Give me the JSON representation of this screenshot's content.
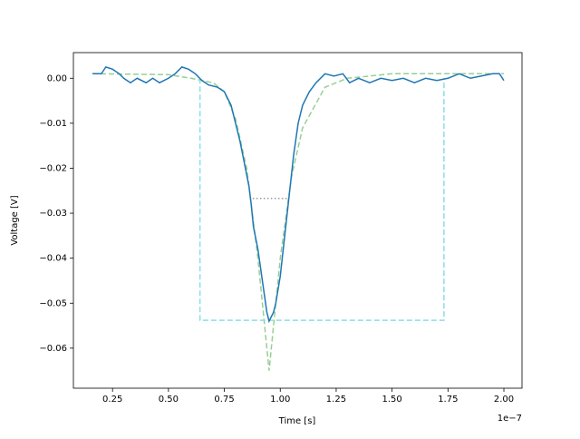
{
  "chart_data": {
    "type": "line",
    "x_label": "Time [s]",
    "y_label": "Voltage [V]",
    "x_offset_label": "1e−7",
    "xlim": [
      0.075,
      2.081
    ],
    "ylim": [
      -0.0689,
      0.0057
    ],
    "xticks": [
      0.25,
      {
        "value": 0.5,
        "label": "0.50"
      },
      0.75,
      {
        "value": 1.0,
        "label": "1.00"
      },
      1.25,
      {
        "value": 1.5,
        "label": "1.50"
      },
      1.75,
      {
        "value": 2.0,
        "label": "2.00"
      }
    ],
    "yticks": [
      {
        "value": 0.0,
        "label": "0.00"
      },
      {
        "value": -0.01,
        "label": "−0.01"
      },
      {
        "value": -0.02,
        "label": "−0.02"
      },
      {
        "value": -0.03,
        "label": "−0.03"
      },
      {
        "value": -0.04,
        "label": "−0.04"
      },
      {
        "value": -0.05,
        "label": "−0.05"
      },
      {
        "value": -0.06,
        "label": "−0.06"
      }
    ],
    "series": [
      {
        "color": "#96cf96",
        "style": "dashed",
        "x": [
          0.16,
          0.5,
          0.6,
          0.7,
          0.75,
          0.8,
          0.85,
          0.9,
          0.93,
          0.95,
          0.97,
          1.0,
          1.05,
          1.1,
          1.2,
          1.3,
          1.5,
          2.0
        ],
        "values": [
          0.001,
          0.0008,
          0.0,
          -0.001,
          -0.003,
          -0.009,
          -0.02,
          -0.04,
          -0.055,
          -0.065,
          -0.055,
          -0.04,
          -0.022,
          -0.011,
          -0.002,
          0.0,
          0.001,
          0.001
        ]
      },
      {
        "color": "#8bdee7",
        "style": "dashed",
        "x": [
          0.641,
          0.641,
          1.732,
          1.732
        ],
        "values": [
          0.0,
          -0.0538,
          -0.0538,
          0.0
        ]
      },
      {
        "color": "#999999",
        "style": "dotted",
        "x": [
          0.877,
          1.04
        ],
        "values": [
          -0.0267,
          -0.0267
        ]
      },
      {
        "color": "#1f77b4",
        "style": "solid",
        "x": [
          0.16,
          0.2,
          0.22,
          0.25,
          0.28,
          0.3,
          0.33,
          0.36,
          0.4,
          0.43,
          0.46,
          0.5,
          0.53,
          0.56,
          0.59,
          0.62,
          0.65,
          0.68,
          0.72,
          0.75,
          0.78,
          0.8,
          0.82,
          0.84,
          0.86,
          0.87,
          0.88,
          0.9,
          0.92,
          0.94,
          0.95,
          0.97,
          0.98,
          1.0,
          1.02,
          1.04,
          1.06,
          1.08,
          1.1,
          1.13,
          1.16,
          1.2,
          1.24,
          1.28,
          1.31,
          1.35,
          1.4,
          1.45,
          1.5,
          1.55,
          1.6,
          1.65,
          1.7,
          1.75,
          1.8,
          1.85,
          1.9,
          1.95,
          1.98,
          2.0
        ],
        "values": [
          0.001,
          0.001,
          0.0025,
          0.002,
          0.001,
          0.0,
          -0.001,
          0.0,
          -0.001,
          0.0,
          -0.001,
          0.0,
          0.001,
          0.0025,
          0.002,
          0.001,
          -0.0005,
          -0.0015,
          -0.002,
          -0.003,
          -0.006,
          -0.01,
          -0.014,
          -0.019,
          -0.024,
          -0.028,
          -0.033,
          -0.038,
          -0.045,
          -0.052,
          -0.054,
          -0.052,
          -0.05,
          -0.044,
          -0.035,
          -0.026,
          -0.017,
          -0.01,
          -0.006,
          -0.003,
          -0.001,
          0.001,
          0.0005,
          0.001,
          -0.001,
          0.0,
          -0.001,
          0.0,
          -0.0005,
          0.0,
          -0.001,
          0.0,
          -0.0005,
          0.0,
          0.001,
          0.0,
          0.0005,
          0.001,
          0.001,
          -0.0005
        ]
      }
    ]
  }
}
